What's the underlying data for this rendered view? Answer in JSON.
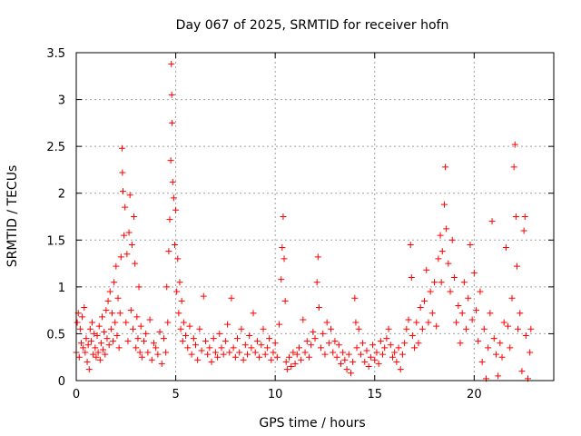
{
  "chart_data": {
    "type": "scatter",
    "title": "Day 067 of 2025, SRMTID for receiver hofn",
    "xlabel": "GPS time / hours",
    "ylabel": "SRMTID / TECUs",
    "xlim": [
      0,
      24
    ],
    "ylim": [
      0,
      3.5
    ],
    "xticks": [
      0,
      5,
      10,
      15,
      20
    ],
    "xtick_labels": [
      "0",
      "5",
      "10",
      "15",
      "20"
    ],
    "yticks": [
      0,
      0.5,
      1,
      1.5,
      2,
      2.5,
      3,
      3.5
    ],
    "ytick_labels": [
      "0",
      "0.5",
      "1",
      "1.5",
      "2",
      "2.5",
      "3",
      "3.5"
    ],
    "grid": true,
    "marker": "+",
    "series": [
      {
        "name": "SRMTID",
        "color": "#ff0000",
        "points": [
          [
            0.0,
            0.3
          ],
          [
            0.05,
            0.62
          ],
          [
            0.1,
            0.72
          ],
          [
            0.15,
            0.25
          ],
          [
            0.2,
            0.55
          ],
          [
            0.25,
            0.4
          ],
          [
            0.3,
            0.68
          ],
          [
            0.35,
            0.35
          ],
          [
            0.4,
            0.78
          ],
          [
            0.45,
            0.3
          ],
          [
            0.5,
            0.45
          ],
          [
            0.55,
            0.2
          ],
          [
            0.6,
            0.38
          ],
          [
            0.65,
            0.12
          ],
          [
            0.7,
            0.55
          ],
          [
            0.75,
            0.42
          ],
          [
            0.8,
            0.62
          ],
          [
            0.85,
            0.28
          ],
          [
            0.9,
            0.5
          ],
          [
            0.95,
            0.35
          ],
          [
            1.0,
            0.25
          ],
          [
            1.05,
            0.48
          ],
          [
            1.1,
            0.3
          ],
          [
            1.15,
            0.58
          ],
          [
            1.2,
            0.22
          ],
          [
            1.25,
            0.4
          ],
          [
            1.3,
            0.68
          ],
          [
            1.35,
            0.33
          ],
          [
            1.4,
            0.52
          ],
          [
            1.45,
            0.28
          ],
          [
            1.5,
            0.75
          ],
          [
            1.55,
            0.45
          ],
          [
            1.6,
            0.85
          ],
          [
            1.65,
            0.38
          ],
          [
            1.7,
            0.95
          ],
          [
            1.75,
            0.55
          ],
          [
            1.8,
            0.72
          ],
          [
            1.85,
            0.42
          ],
          [
            1.9,
            1.05
          ],
          [
            1.95,
            0.62
          ],
          [
            2.0,
            1.22
          ],
          [
            2.05,
            0.48
          ],
          [
            2.1,
            0.88
          ],
          [
            2.15,
            0.35
          ],
          [
            2.2,
            0.72
          ],
          [
            2.25,
            1.32
          ],
          [
            2.3,
            2.48
          ],
          [
            2.32,
            2.22
          ],
          [
            2.35,
            2.02
          ],
          [
            2.4,
            1.55
          ],
          [
            2.45,
            1.85
          ],
          [
            2.5,
            0.62
          ],
          [
            2.55,
            1.35
          ],
          [
            2.6,
            0.42
          ],
          [
            2.65,
            1.58
          ],
          [
            2.7,
            1.98
          ],
          [
            2.75,
            0.75
          ],
          [
            2.8,
            1.45
          ],
          [
            2.85,
            0.55
          ],
          [
            2.9,
            1.75
          ],
          [
            2.95,
            1.25
          ],
          [
            3.0,
            0.35
          ],
          [
            3.05,
            0.68
          ],
          [
            3.1,
            0.45
          ],
          [
            3.15,
            1.0
          ],
          [
            3.2,
            0.3
          ],
          [
            3.25,
            0.58
          ],
          [
            3.3,
            0.25
          ],
          [
            3.4,
            0.42
          ],
          [
            3.5,
            0.5
          ],
          [
            3.6,
            0.3
          ],
          [
            3.7,
            0.65
          ],
          [
            3.8,
            0.22
          ],
          [
            3.9,
            0.4
          ],
          [
            4.0,
            0.35
          ],
          [
            4.1,
            0.28
          ],
          [
            4.2,
            0.52
          ],
          [
            4.3,
            0.18
          ],
          [
            4.4,
            0.45
          ],
          [
            4.5,
            0.3
          ],
          [
            4.55,
            1.0
          ],
          [
            4.6,
            0.62
          ],
          [
            4.65,
            1.38
          ],
          [
            4.7,
            1.72
          ],
          [
            4.75,
            2.35
          ],
          [
            4.78,
            3.38
          ],
          [
            4.8,
            3.05
          ],
          [
            4.82,
            2.75
          ],
          [
            4.85,
            2.12
          ],
          [
            4.9,
            1.95
          ],
          [
            4.95,
            1.45
          ],
          [
            5.0,
            1.82
          ],
          [
            5.05,
            0.95
          ],
          [
            5.1,
            1.3
          ],
          [
            5.15,
            0.72
          ],
          [
            5.2,
            1.05
          ],
          [
            5.25,
            0.55
          ],
          [
            5.3,
            0.85
          ],
          [
            5.35,
            0.42
          ],
          [
            5.4,
            0.62
          ],
          [
            5.5,
            0.48
          ],
          [
            5.6,
            0.35
          ],
          [
            5.7,
            0.58
          ],
          [
            5.8,
            0.28
          ],
          [
            5.9,
            0.45
          ],
          [
            6.0,
            0.38
          ],
          [
            6.1,
            0.22
          ],
          [
            6.2,
            0.55
          ],
          [
            6.3,
            0.32
          ],
          [
            6.4,
            0.9
          ],
          [
            6.5,
            0.42
          ],
          [
            6.6,
            0.28
          ],
          [
            6.7,
            0.35
          ],
          [
            6.8,
            0.2
          ],
          [
            6.9,
            0.45
          ],
          [
            7.0,
            0.3
          ],
          [
            7.1,
            0.25
          ],
          [
            7.2,
            0.5
          ],
          [
            7.3,
            0.35
          ],
          [
            7.4,
            0.28
          ],
          [
            7.5,
            0.42
          ],
          [
            7.6,
            0.6
          ],
          [
            7.7,
            0.3
          ],
          [
            7.8,
            0.88
          ],
          [
            7.9,
            0.35
          ],
          [
            8.0,
            0.25
          ],
          [
            8.1,
            0.45
          ],
          [
            8.2,
            0.3
          ],
          [
            8.3,
            0.55
          ],
          [
            8.4,
            0.22
          ],
          [
            8.5,
            0.38
          ],
          [
            8.6,
            0.28
          ],
          [
            8.7,
            0.48
          ],
          [
            8.8,
            0.35
          ],
          [
            8.9,
            0.72
          ],
          [
            9.0,
            0.3
          ],
          [
            9.1,
            0.42
          ],
          [
            9.2,
            0.25
          ],
          [
            9.3,
            0.38
          ],
          [
            9.4,
            0.55
          ],
          [
            9.5,
            0.28
          ],
          [
            9.6,
            0.35
          ],
          [
            9.7,
            0.45
          ],
          [
            9.8,
            0.22
          ],
          [
            9.9,
            0.3
          ],
          [
            10.0,
            0.4
          ],
          [
            10.1,
            0.25
          ],
          [
            10.2,
            0.6
          ],
          [
            10.3,
            1.08
          ],
          [
            10.35,
            1.42
          ],
          [
            10.4,
            1.75
          ],
          [
            10.45,
            1.3
          ],
          [
            10.5,
            0.85
          ],
          [
            10.55,
            0.2
          ],
          [
            10.6,
            0.12
          ],
          [
            10.7,
            0.25
          ],
          [
            10.8,
            0.15
          ],
          [
            10.9,
            0.3
          ],
          [
            11.0,
            0.18
          ],
          [
            11.1,
            0.28
          ],
          [
            11.2,
            0.35
          ],
          [
            11.3,
            0.22
          ],
          [
            11.4,
            0.65
          ],
          [
            11.5,
            0.3
          ],
          [
            11.6,
            0.42
          ],
          [
            11.7,
            0.25
          ],
          [
            11.8,
            0.38
          ],
          [
            11.9,
            0.52
          ],
          [
            12.0,
            0.45
          ],
          [
            12.1,
            1.05
          ],
          [
            12.15,
            1.32
          ],
          [
            12.2,
            0.78
          ],
          [
            12.3,
            0.35
          ],
          [
            12.4,
            0.5
          ],
          [
            12.5,
            0.28
          ],
          [
            12.6,
            0.62
          ],
          [
            12.7,
            0.4
          ],
          [
            12.8,
            0.55
          ],
          [
            12.9,
            0.3
          ],
          [
            13.0,
            0.42
          ],
          [
            13.1,
            0.25
          ],
          [
            13.2,
            0.38
          ],
          [
            13.3,
            0.18
          ],
          [
            13.4,
            0.3
          ],
          [
            13.5,
            0.22
          ],
          [
            13.6,
            0.12
          ],
          [
            13.7,
            0.28
          ],
          [
            13.8,
            0.08
          ],
          [
            13.9,
            0.2
          ],
          [
            14.0,
            0.88
          ],
          [
            14.05,
            0.62
          ],
          [
            14.1,
            0.35
          ],
          [
            14.2,
            0.55
          ],
          [
            14.3,
            0.28
          ],
          [
            14.4,
            0.4
          ],
          [
            14.5,
            0.2
          ],
          [
            14.6,
            0.32
          ],
          [
            14.7,
            0.15
          ],
          [
            14.8,
            0.25
          ],
          [
            14.9,
            0.38
          ],
          [
            15.0,
            0.22
          ],
          [
            15.1,
            0.3
          ],
          [
            15.2,
            0.18
          ],
          [
            15.3,
            0.42
          ],
          [
            15.4,
            0.28
          ],
          [
            15.5,
            0.35
          ],
          [
            15.6,
            0.45
          ],
          [
            15.7,
            0.55
          ],
          [
            15.8,
            0.38
          ],
          [
            15.9,
            0.25
          ],
          [
            16.0,
            0.3
          ],
          [
            16.1,
            0.2
          ],
          [
            16.2,
            0.35
          ],
          [
            16.3,
            0.12
          ],
          [
            16.4,
            0.28
          ],
          [
            16.5,
            0.4
          ],
          [
            16.6,
            0.55
          ],
          [
            16.7,
            0.65
          ],
          [
            16.8,
            1.45
          ],
          [
            16.85,
            1.1
          ],
          [
            16.9,
            0.48
          ],
          [
            17.0,
            0.35
          ],
          [
            17.1,
            0.62
          ],
          [
            17.2,
            0.4
          ],
          [
            17.3,
            0.78
          ],
          [
            17.4,
            0.55
          ],
          [
            17.5,
            0.85
          ],
          [
            17.6,
            1.18
          ],
          [
            17.7,
            0.62
          ],
          [
            17.8,
            0.95
          ],
          [
            17.9,
            0.72
          ],
          [
            18.0,
            1.05
          ],
          [
            18.1,
            0.58
          ],
          [
            18.2,
            1.3
          ],
          [
            18.3,
            1.55
          ],
          [
            18.35,
            1.05
          ],
          [
            18.4,
            1.38
          ],
          [
            18.5,
            1.88
          ],
          [
            18.55,
            2.28
          ],
          [
            18.6,
            1.62
          ],
          [
            18.7,
            1.25
          ],
          [
            18.8,
            0.95
          ],
          [
            18.9,
            1.5
          ],
          [
            19.0,
            1.1
          ],
          [
            19.1,
            0.62
          ],
          [
            19.2,
            0.8
          ],
          [
            19.3,
            0.4
          ],
          [
            19.4,
            0.72
          ],
          [
            19.5,
            1.05
          ],
          [
            19.6,
            0.55
          ],
          [
            19.7,
            0.88
          ],
          [
            19.8,
            1.45
          ],
          [
            19.9,
            0.65
          ],
          [
            20.0,
            1.15
          ],
          [
            20.1,
            0.75
          ],
          [
            20.2,
            0.42
          ],
          [
            20.3,
            0.95
          ],
          [
            20.4,
            0.2
          ],
          [
            20.5,
            0.55
          ],
          [
            20.6,
            0.02
          ],
          [
            20.7,
            0.35
          ],
          [
            20.8,
            0.72
          ],
          [
            20.9,
            1.7
          ],
          [
            21.0,
            0.45
          ],
          [
            21.1,
            0.28
          ],
          [
            21.2,
            0.05
          ],
          [
            21.3,
            0.4
          ],
          [
            21.4,
            0.25
          ],
          [
            21.5,
            0.62
          ],
          [
            21.6,
            1.42
          ],
          [
            21.7,
            0.58
          ],
          [
            21.8,
            0.35
          ],
          [
            21.9,
            0.88
          ],
          [
            22.0,
            2.28
          ],
          [
            22.05,
            2.52
          ],
          [
            22.1,
            1.75
          ],
          [
            22.15,
            1.22
          ],
          [
            22.2,
            0.55
          ],
          [
            22.3,
            0.72
          ],
          [
            22.4,
            0.1
          ],
          [
            22.5,
            1.6
          ],
          [
            22.55,
            1.75
          ],
          [
            22.6,
            0.48
          ],
          [
            22.7,
            0.02
          ],
          [
            22.8,
            0.3
          ],
          [
            22.85,
            0.55
          ]
        ]
      }
    ]
  }
}
